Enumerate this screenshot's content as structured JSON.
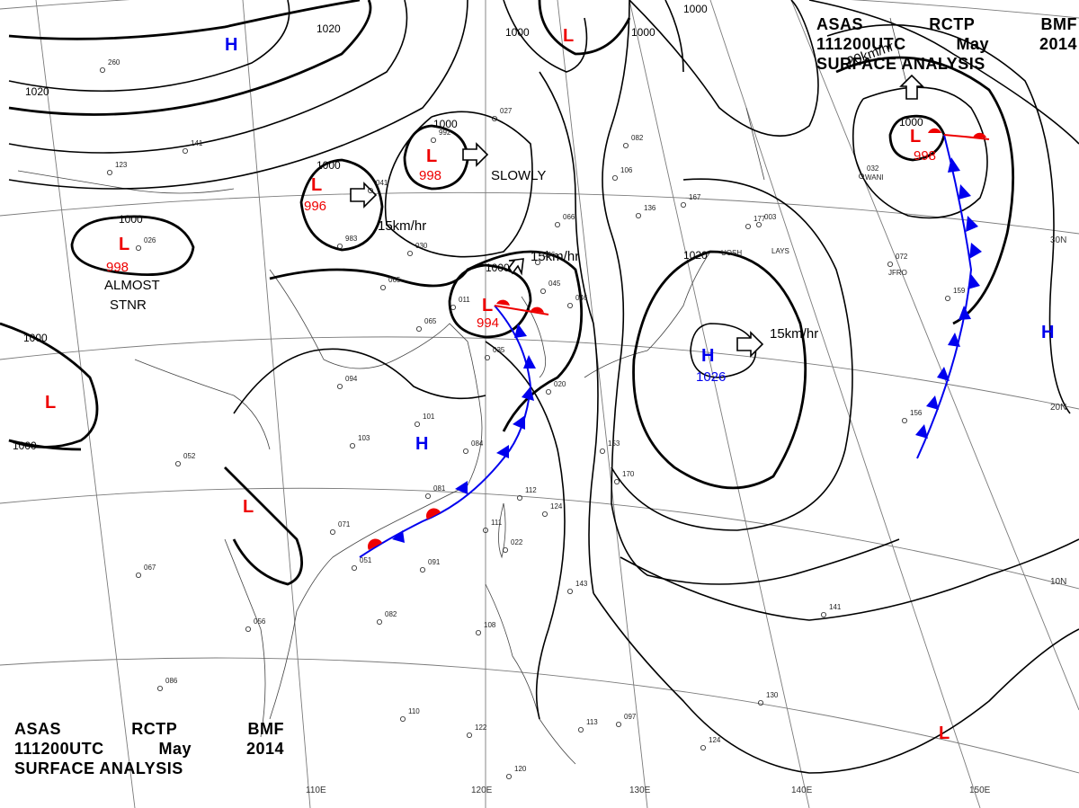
{
  "header_top_right": {
    "agency": [
      "ASAS",
      "RCTP",
      "BMF"
    ],
    "time": [
      "111200UTC",
      "May",
      "2014"
    ],
    "product": "SURFACE ANALYSIS"
  },
  "header_bottom_left": {
    "agency": [
      "ASAS",
      "RCTP",
      "BMF"
    ],
    "time": [
      "111200UTC",
      "May",
      "2014"
    ],
    "product": "SURFACE ANALYSIS"
  },
  "colors": {
    "high": "#0000ee",
    "low": "#ee0000",
    "isobar": "#000000",
    "grid": "#7a7a7a",
    "coast": "#444444",
    "cold_front": "#0000ee",
    "warm_front": "#ee0000"
  },
  "longitude_labels": [
    "110E",
    "120E",
    "130E",
    "140E",
    "150E"
  ],
  "latitude_labels": [
    "30N",
    "20N",
    "10N"
  ],
  "isobar_labels": [
    "1020",
    "1020",
    "1000",
    "1000",
    "1000",
    "1000",
    "1000",
    "1000",
    "1000",
    "1000",
    "1000",
    "1000",
    "1020"
  ],
  "pressure_centers": [
    {
      "type": "H",
      "value": ""
    },
    {
      "type": "L",
      "value": ""
    },
    {
      "type": "L",
      "value": "998"
    },
    {
      "type": "L",
      "value": "996"
    },
    {
      "type": "L",
      "value": "998"
    },
    {
      "type": "L",
      "value": "994"
    },
    {
      "type": "L",
      "value": "998"
    },
    {
      "type": "H",
      "value": "1026"
    },
    {
      "type": "H",
      "value": ""
    },
    {
      "type": "H",
      "value": ""
    },
    {
      "type": "L",
      "value": ""
    },
    {
      "type": "L",
      "value": ""
    },
    {
      "type": "L",
      "value": ""
    }
  ],
  "motion_labels": [
    "SLOWLY",
    "15km/hr",
    "15km/hr",
    "15km/hr",
    "20km/hr"
  ],
  "stationary_label": [
    "ALMOST",
    "STNR"
  ],
  "station_plots": [
    "260",
    "141",
    "123",
    "041",
    "983",
    "030",
    "992",
    "027",
    "082",
    "106",
    "136",
    "167",
    "177",
    "065",
    "065",
    "094",
    "011",
    "101",
    "103",
    "084",
    "081",
    "071",
    "051",
    "091",
    "082",
    "056",
    "067",
    "086",
    "110",
    "122",
    "120",
    "108",
    "143",
    "097",
    "113",
    "124",
    "130",
    "141",
    "156",
    "112",
    "111",
    "124",
    "170",
    "153",
    "052",
    "072",
    "159",
    "032",
    "066",
    "086",
    "003",
    "026",
    "035",
    "020",
    "022",
    "045",
    "046"
  ],
  "station_codes": [
    "UOSH",
    "LAYS",
    "WANI",
    "JFRO"
  ]
}
